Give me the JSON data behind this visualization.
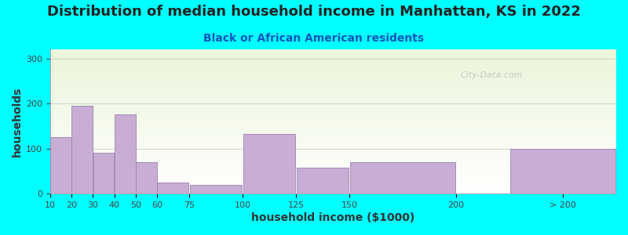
{
  "title": "Distribution of median household income in Manhattan, KS in 2022",
  "subtitle": "Black or African American residents",
  "xlabel": "household income ($1000)",
  "ylabel": "households",
  "bg_outer": "#00FFFF",
  "bar_color": "#c8aed4",
  "bar_edge_color": "#9b7fb0",
  "yticks": [
    0,
    100,
    200,
    300
  ],
  "ylim": [
    0,
    320
  ],
  "tick_positions": [
    10,
    20,
    30,
    40,
    50,
    60,
    75,
    100,
    125,
    150,
    200,
    250
  ],
  "tick_labels": [
    "10",
    "20",
    "30",
    "40",
    "50",
    "60",
    "75",
    "100",
    "125",
    "150",
    "200",
    "> 200"
  ],
  "bar_lefts": [
    10,
    20,
    30,
    40,
    50,
    60,
    75,
    100,
    125,
    150,
    200,
    225
  ],
  "bar_widths": [
    10,
    10,
    10,
    10,
    10,
    15,
    25,
    25,
    25,
    50,
    25,
    50
  ],
  "values": [
    125,
    195,
    90,
    175,
    70,
    25,
    20,
    133,
    58,
    70,
    0,
    100
  ],
  "watermark": "City-Data.com",
  "title_fontsize": 13,
  "subtitle_fontsize": 10,
  "axis_label_fontsize": 10,
  "tick_fontsize": 8,
  "xlim_left": 10,
  "xlim_right": 275
}
